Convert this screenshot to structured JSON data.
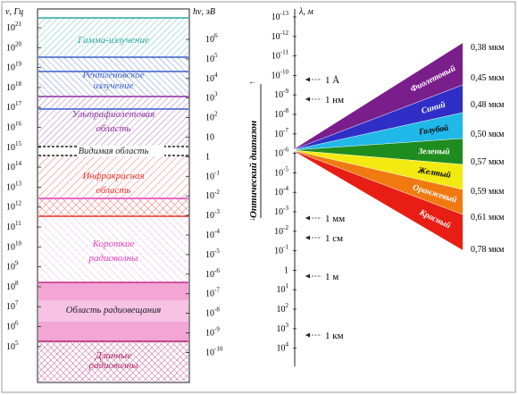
{
  "axes": {
    "frequency_label": "ν, Гц",
    "energy_label": "hν, эВ",
    "wavelength_label": "λ, м"
  },
  "frequency_ticks": [
    {
      "base": "10",
      "exp": "21"
    },
    {
      "base": "10",
      "exp": "20"
    },
    {
      "base": "10",
      "exp": "19"
    },
    {
      "base": "10",
      "exp": "18"
    },
    {
      "base": "10",
      "exp": "17"
    },
    {
      "base": "10",
      "exp": "16"
    },
    {
      "base": "10",
      "exp": "15"
    },
    {
      "base": "10",
      "exp": "14"
    },
    {
      "base": "10",
      "exp": "13"
    },
    {
      "base": "10",
      "exp": "12"
    },
    {
      "base": "10",
      "exp": "11"
    },
    {
      "base": "10",
      "exp": "10"
    },
    {
      "base": "10",
      "exp": "9"
    },
    {
      "base": "10",
      "exp": "8"
    },
    {
      "base": "10",
      "exp": "7"
    },
    {
      "base": "10",
      "exp": "6"
    },
    {
      "base": "10",
      "exp": "5"
    }
  ],
  "energy_ticks": [
    {
      "base": "10",
      "exp": "6"
    },
    {
      "base": "10",
      "exp": "5"
    },
    {
      "base": "10",
      "exp": "4"
    },
    {
      "base": "10",
      "exp": "3"
    },
    {
      "base": "10",
      "exp": "2"
    },
    {
      "base": "10",
      "exp": ""
    },
    {
      "base": "1",
      "exp": ""
    },
    {
      "base": "10",
      "exp": "-1"
    },
    {
      "base": "10",
      "exp": "-2"
    },
    {
      "base": "10",
      "exp": "-3"
    },
    {
      "base": "10",
      "exp": "-4"
    },
    {
      "base": "10",
      "exp": "-5"
    },
    {
      "base": "10",
      "exp": "-6"
    },
    {
      "base": "10",
      "exp": "-7"
    },
    {
      "base": "10",
      "exp": "-8"
    },
    {
      "base": "10",
      "exp": "-9"
    },
    {
      "base": "10",
      "exp": "-10"
    }
  ],
  "wavelength_ticks": [
    {
      "base": "10",
      "exp": "-13"
    },
    {
      "base": "10",
      "exp": "-12"
    },
    {
      "base": "10",
      "exp": "-11"
    },
    {
      "base": "10",
      "exp": "-10"
    },
    {
      "base": "10",
      "exp": "-9"
    },
    {
      "base": "10",
      "exp": "-8"
    },
    {
      "base": "10",
      "exp": "-7"
    },
    {
      "base": "10",
      "exp": "-6"
    },
    {
      "base": "10",
      "exp": "-5"
    },
    {
      "base": "10",
      "exp": "-4"
    },
    {
      "base": "10",
      "exp": "-3"
    },
    {
      "base": "10",
      "exp": "-2"
    },
    {
      "base": "10",
      "exp": "-1"
    },
    {
      "base": "1",
      "exp": ""
    },
    {
      "base": "10",
      "exp": "1"
    },
    {
      "base": "10",
      "exp": "2"
    },
    {
      "base": "10",
      "exp": "3"
    },
    {
      "base": "10",
      "exp": "4"
    }
  ],
  "bands": [
    {
      "label": [
        "Гамма-излучение"
      ],
      "color": "#2aa6a6"
    },
    {
      "label": [
        "Рентгеновское",
        "излучение"
      ],
      "color": "#3a5fcd"
    },
    {
      "label": [
        "Ультрафиолетовая",
        "область"
      ],
      "color": "#8b2fa0"
    },
    {
      "label": [
        "Видимая область"
      ],
      "color": "#222222"
    },
    {
      "label": [
        "Инфракрасная",
        "область"
      ],
      "color": "#e8322a"
    },
    {
      "label": [
        "Короткие",
        "радиоволны"
      ],
      "color": "#e03dbf"
    },
    {
      "label": [
        "Область радиовещания"
      ],
      "color": "#222222"
    },
    {
      "label": [
        "Длинные",
        "радиоволны"
      ],
      "color": "#b0226a"
    }
  ],
  "optical_range_label": "Оптический диапазон",
  "wavelength_markers": [
    "1 Å",
    "1 нм",
    "1 мм",
    "1 см",
    "1 м",
    "1 км"
  ],
  "color_bands": [
    {
      "name": "Фиолетовый",
      "color": "#7a1e8c"
    },
    {
      "name": "Синий",
      "color": "#2f2fc8"
    },
    {
      "name": "Голубой",
      "color": "#20b8e8"
    },
    {
      "name": "Зеленый",
      "color": "#1e8c1e"
    },
    {
      "name": "Желтый",
      "color": "#f2ea10"
    },
    {
      "name": "Оранжевый",
      "color": "#f07a10"
    },
    {
      "name": "Красный",
      "color": "#e81e14"
    }
  ],
  "boundary_wavelengths": [
    "0,38 мкм",
    "0,45 мкм",
    "0,48 мкм",
    "0,50 мкм",
    "0,57 мкм",
    "0,59 мкм",
    "0,61 мкм",
    "0,78 мкм"
  ]
}
